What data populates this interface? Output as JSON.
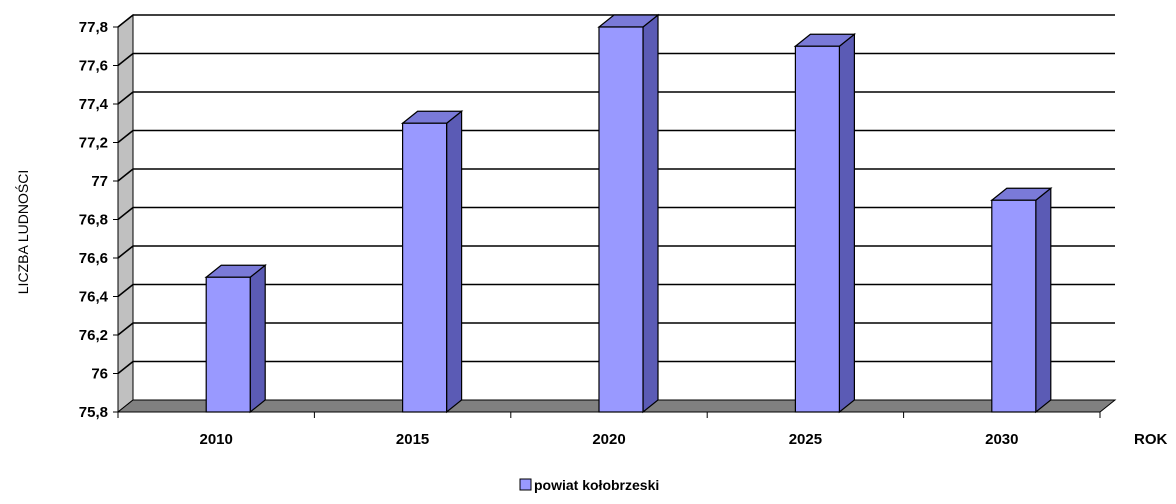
{
  "chart_data": {
    "type": "bar",
    "categories": [
      "2010",
      "2015",
      "2020",
      "2025",
      "2030"
    ],
    "series": [
      {
        "name": "powiat kołobrzeski",
        "values": [
          76.5,
          77.3,
          77.8,
          77.7,
          76.9
        ]
      }
    ],
    "xlabel": "ROK",
    "ylabel": "LICZBA  LUDNOŚCI",
    "ylim": [
      75.8,
      77.8
    ],
    "yticks": [
      "75,8",
      "76",
      "76,2",
      "76,4",
      "76,6",
      "76,8",
      "77",
      "77,2",
      "77,4",
      "77,6",
      "77,8"
    ],
    "grid": true,
    "legend": "bottom-center",
    "colors": {
      "bar_front": "#9999ff",
      "bar_side": "#5b5bb5",
      "bar_top": "#7a7ad8",
      "wall": "#c0c0c0",
      "floor": "#808080",
      "grid": "#000000"
    }
  }
}
